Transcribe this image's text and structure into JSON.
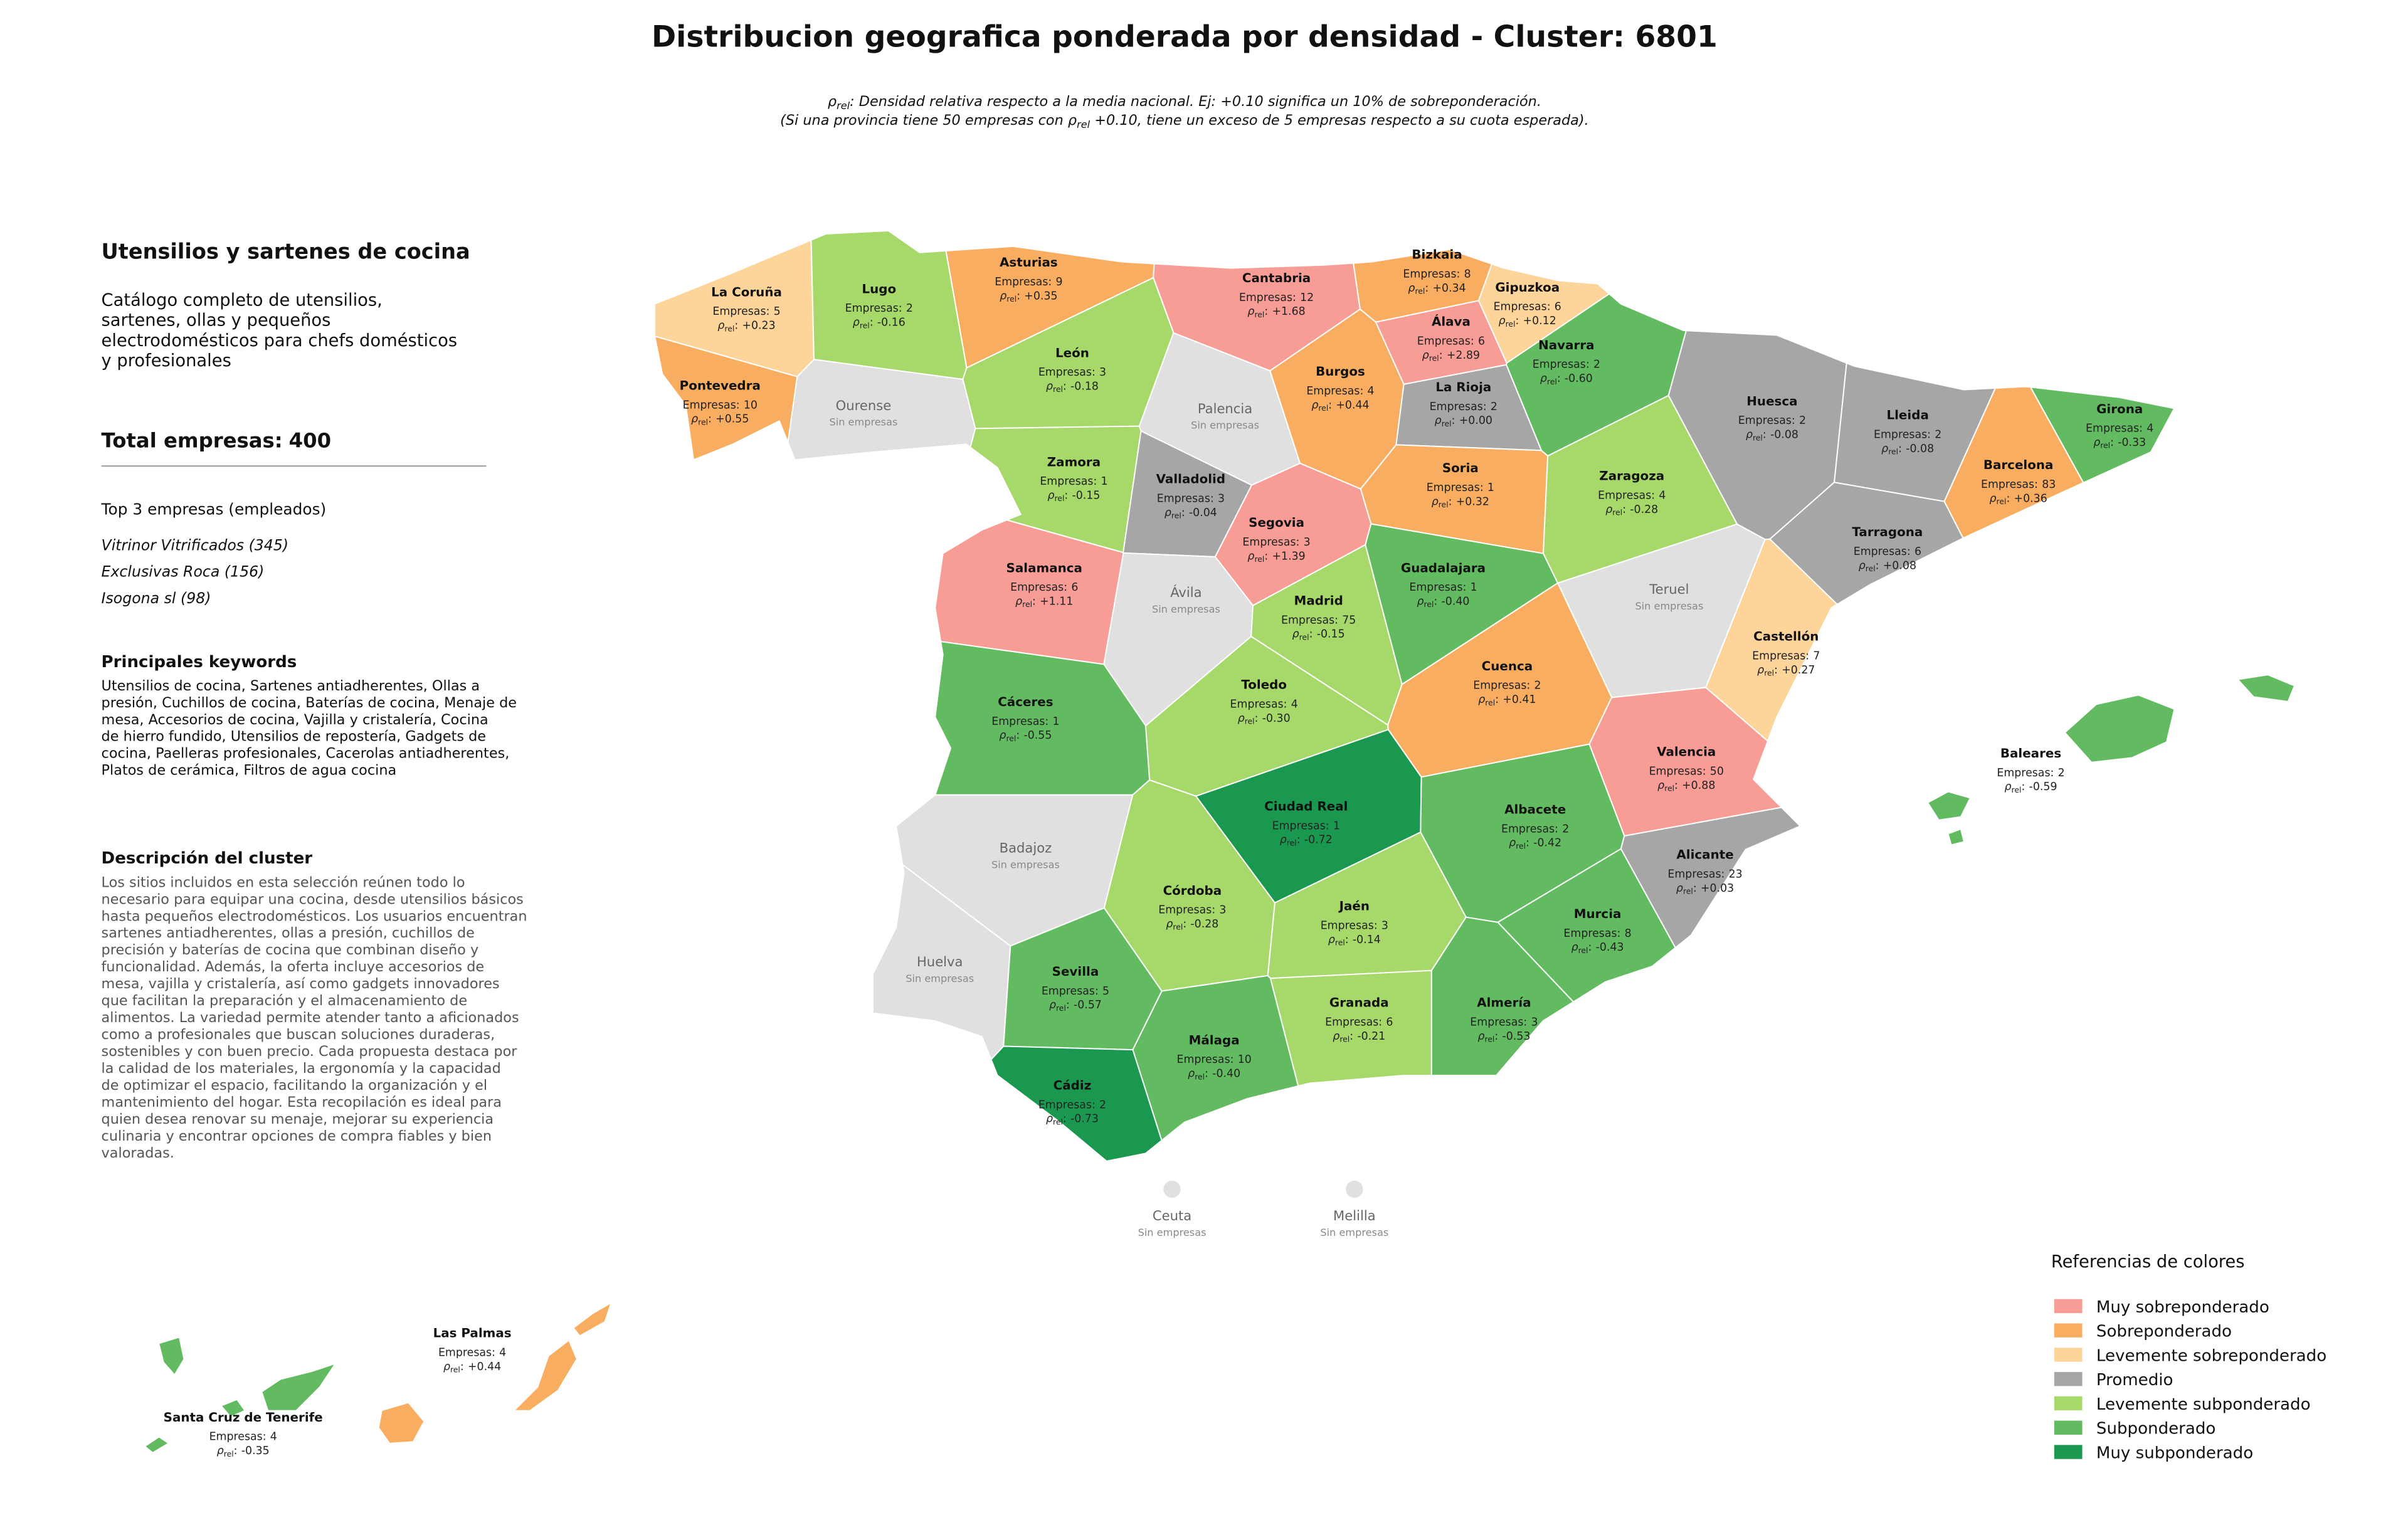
{
  "header": {
    "title": "Distribucion geografica ponderada por densidad - Cluster: 6801",
    "subtitle": [
      [
        "ρ",
        "rel",
        ": Densidad relativa respecto a la media nacional. Ej: +0.10 significa un 10% de sobreponderación."
      ],
      [
        "(Si una provincia tiene 50 empresas con ρ",
        "rel",
        " +0.10, tiene un exceso de 5 empresas respecto a su cuota esperada)."
      ]
    ]
  },
  "sidebar": {
    "heading": "Utensilios y sartenes de cocina",
    "description": [
      "Catálogo completo de utensilios,",
      "sartenes, ollas y pequeños",
      "electrodomésticos para chefs domésticos",
      "y profesionales"
    ],
    "total_label": "Total empresas:",
    "total": 400,
    "top_title": "Top 3 empresas (empleados)",
    "top": [
      "Vitrinor Vitrificados (345)",
      "Exclusivas Roca (156)",
      "Isogona sl (98)"
    ],
    "keywords_title": "Principales keywords",
    "keywords": [
      "Utensilios de cocina, Sartenes antiadherentes, Ollas a",
      "presión, Cuchillos de cocina, Baterías de cocina, Menaje de",
      "mesa, Accesorios de cocina, Vajilla y cristalería, Cocina",
      "de hierro fundido, Utensilios de repostería, Gadgets de",
      "cocina, Paelleras profesionales, Cacerolas antiadherentes,",
      "Platos de cerámica, Filtros de agua cocina"
    ],
    "cluster_title": "Descripción del cluster",
    "cluster_text": [
      "Los sitios incluidos en esta selección reúnen todo lo",
      "necesario para equipar una cocina, desde utensilios básicos",
      "hasta pequeños electrodomésticos. Los usuarios encuentran",
      "sartenes antiadherentes, ollas a presión, cuchillos de",
      "precisión y baterías de cocina que combinan diseño y",
      "funcionalidad. Además, la oferta incluye accesorios de",
      "mesa, vajilla y cristalería, así como gadgets innovadores",
      "que facilitan la preparación y el almacenamiento de",
      "alimentos. La variedad permite atender tanto a aficionados",
      "como a profesionales que buscan soluciones duraderas,",
      "sostenibles y con buen precio. Cada propuesta destaca por",
      "la calidad de los materiales, la ergonomía y la capacidad",
      "de optimizar el espacio, facilitando la organización y el",
      "mantenimiento del hogar. Esta recopilación es ideal para",
      "quien desea renovar su menaje, mejorar su experiencia",
      "culinaria y encontrar opciones de compra fiables y bien",
      "valoradas."
    ]
  },
  "map": {
    "empresas_prefix": "Empresas:",
    "rho": [
      "ρ",
      "rel",
      ":"
    ],
    "no_data": "Sin empresas",
    "provinces": [
      {
        "name": "La Coruña",
        "empresas": 5,
        "rho": 0.23,
        "rho_label": "+0.23",
        "color": "#fdd49a"
      },
      {
        "name": "Lugo",
        "empresas": 2,
        "rho": -0.16,
        "rho_label": "-0.16",
        "color": "#a6d96a"
      },
      {
        "name": "Asturias",
        "empresas": 9,
        "rho": 0.35,
        "rho_label": "+0.35",
        "color": "#f9ad60"
      },
      {
        "name": "Cantabria",
        "empresas": 12,
        "rho": 1.68,
        "rho_label": "+1.68",
        "color": "#f89c96"
      },
      {
        "name": "Bizkaia",
        "empresas": 8,
        "rho": 0.34,
        "rho_label": "+0.34",
        "color": "#f9ad60"
      },
      {
        "name": "Gipuzkoa",
        "empresas": 6,
        "rho": 0.12,
        "rho_label": "+0.12",
        "color": "#fdd49a"
      },
      {
        "name": "Álava",
        "empresas": 6,
        "rho": 2.89,
        "rho_label": "+2.89",
        "color": "#f89c96"
      },
      {
        "name": "Navarra",
        "empresas": 2,
        "rho": -0.6,
        "rho_label": "-0.60",
        "color": "#63bb61"
      },
      {
        "name": "Pontevedra",
        "empresas": 10,
        "rho": 0.55,
        "rho_label": "+0.55",
        "color": "#f9ad60"
      },
      {
        "name": "Ourense",
        "color": "#e0e0e0"
      },
      {
        "name": "León",
        "empresas": 3,
        "rho": -0.18,
        "rho_label": "-0.18",
        "color": "#a6d96a"
      },
      {
        "name": "Palencia",
        "color": "#e0e0e0"
      },
      {
        "name": "Burgos",
        "empresas": 4,
        "rho": 0.44,
        "rho_label": "+0.44",
        "color": "#f9ad60"
      },
      {
        "name": "La Rioja",
        "empresas": 2,
        "rho": 0.0,
        "rho_label": "+0.00",
        "color": "#a6a6a6"
      },
      {
        "name": "Huesca",
        "empresas": 2,
        "rho": -0.08,
        "rho_label": "-0.08",
        "color": "#a6a6a6"
      },
      {
        "name": "Lleida",
        "empresas": 2,
        "rho": -0.08,
        "rho_label": "-0.08",
        "color": "#a6a6a6"
      },
      {
        "name": "Girona",
        "empresas": 4,
        "rho": -0.33,
        "rho_label": "-0.33",
        "color": "#63bb61"
      },
      {
        "name": "Zamora",
        "empresas": 1,
        "rho": -0.15,
        "rho_label": "-0.15",
        "color": "#a6d96a"
      },
      {
        "name": "Valladolid",
        "empresas": 3,
        "rho": -0.04,
        "rho_label": "-0.04",
        "color": "#a6a6a6"
      },
      {
        "name": "Soria",
        "empresas": 1,
        "rho": 0.32,
        "rho_label": "+0.32",
        "color": "#f9ad60"
      },
      {
        "name": "Zaragoza",
        "empresas": 4,
        "rho": -0.28,
        "rho_label": "-0.28",
        "color": "#a6d96a"
      },
      {
        "name": "Barcelona",
        "empresas": 83,
        "rho": 0.36,
        "rho_label": "+0.36",
        "color": "#f9ad60"
      },
      {
        "name": "Segovia",
        "empresas": 3,
        "rho": 1.39,
        "rho_label": "+1.39",
        "color": "#f89c96"
      },
      {
        "name": "Tarragona",
        "empresas": 6,
        "rho": 0.08,
        "rho_label": "+0.08",
        "color": "#a6a6a6"
      },
      {
        "name": "Salamanca",
        "empresas": 6,
        "rho": 1.11,
        "rho_label": "+1.11",
        "color": "#f89c96"
      },
      {
        "name": "Guadalajara",
        "empresas": 1,
        "rho": -0.4,
        "rho_label": "-0.40",
        "color": "#63bb61"
      },
      {
        "name": "Ávila",
        "color": "#e0e0e0"
      },
      {
        "name": "Madrid",
        "empresas": 75,
        "rho": -0.15,
        "rho_label": "-0.15",
        "color": "#a6d96a"
      },
      {
        "name": "Teruel",
        "color": "#e0e0e0"
      },
      {
        "name": "Castellón",
        "empresas": 7,
        "rho": 0.27,
        "rho_label": "+0.27",
        "color": "#fdd49a"
      },
      {
        "name": "Cuenca",
        "empresas": 2,
        "rho": 0.41,
        "rho_label": "+0.41",
        "color": "#f9ad60"
      },
      {
        "name": "Cáceres",
        "empresas": 1,
        "rho": -0.55,
        "rho_label": "-0.55",
        "color": "#63bb61"
      },
      {
        "name": "Toledo",
        "empresas": 4,
        "rho": -0.3,
        "rho_label": "-0.30",
        "color": "#a6d96a"
      },
      {
        "name": "Valencia",
        "empresas": 50,
        "rho": 0.88,
        "rho_label": "+0.88",
        "color": "#f89c96"
      },
      {
        "name": "Baleares",
        "empresas": 2,
        "rho": -0.59,
        "rho_label": "-0.59",
        "color": "#63bb61"
      },
      {
        "name": "Ciudad Real",
        "empresas": 1,
        "rho": -0.72,
        "rho_label": "-0.72",
        "color": "#1a9850"
      },
      {
        "name": "Albacete",
        "empresas": 2,
        "rho": -0.42,
        "rho_label": "-0.42",
        "color": "#63bb61"
      },
      {
        "name": "Badajoz",
        "color": "#e0e0e0"
      },
      {
        "name": "Alicante",
        "empresas": 23,
        "rho": 0.03,
        "rho_label": "+0.03",
        "color": "#a6a6a6"
      },
      {
        "name": "Córdoba",
        "empresas": 3,
        "rho": -0.28,
        "rho_label": "-0.28",
        "color": "#a6d96a"
      },
      {
        "name": "Jaén",
        "empresas": 3,
        "rho": -0.14,
        "rho_label": "-0.14",
        "color": "#a6d96a"
      },
      {
        "name": "Murcia",
        "empresas": 8,
        "rho": -0.43,
        "rho_label": "-0.43",
        "color": "#63bb61"
      },
      {
        "name": "Huelva",
        "color": "#e0e0e0"
      },
      {
        "name": "Sevilla",
        "empresas": 5,
        "rho": -0.57,
        "rho_label": "-0.57",
        "color": "#63bb61"
      },
      {
        "name": "Granada",
        "empresas": 6,
        "rho": -0.21,
        "rho_label": "-0.21",
        "color": "#a6d96a"
      },
      {
        "name": "Almería",
        "empresas": 3,
        "rho": -0.53,
        "rho_label": "-0.53",
        "color": "#63bb61"
      },
      {
        "name": "Málaga",
        "empresas": 10,
        "rho": -0.4,
        "rho_label": "-0.40",
        "color": "#63bb61"
      },
      {
        "name": "Cádiz",
        "empresas": 2,
        "rho": -0.73,
        "rho_label": "-0.73",
        "color": "#1a9850"
      },
      {
        "name": "Ceuta",
        "color": "#e0e0e0"
      },
      {
        "name": "Melilla",
        "color": "#e0e0e0"
      },
      {
        "name": "Las Palmas",
        "empresas": 4,
        "rho": 0.44,
        "rho_label": "+0.44",
        "color": "#f9ad60"
      },
      {
        "name": "Santa Cruz de Tenerife",
        "empresas": 4,
        "rho": -0.35,
        "rho_label": "-0.35",
        "color": "#63bb61"
      }
    ]
  },
  "legend": {
    "title": "Referencias de colores",
    "items": [
      {
        "name": "Muy sobreponderado",
        "color": "#f89c96"
      },
      {
        "name": "Sobreponderado",
        "color": "#f9ad60"
      },
      {
        "name": "Levemente sobreponderado",
        "color": "#fdd49a"
      },
      {
        "name": "Promedio",
        "color": "#a6a6a6"
      },
      {
        "name": "Levemente subponderado",
        "color": "#a6d96a"
      },
      {
        "name": "Subponderado",
        "color": "#63bb61"
      },
      {
        "name": "Muy subponderado",
        "color": "#1a9850"
      }
    ]
  }
}
